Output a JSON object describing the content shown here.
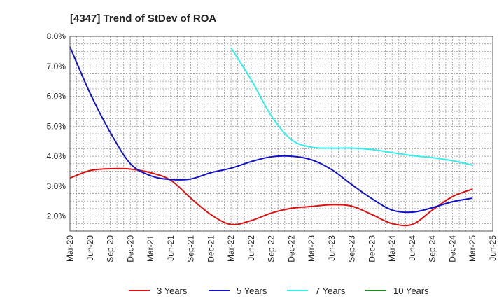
{
  "chart_data": {
    "type": "line",
    "title": "[4347]  Trend of StDev of ROA",
    "xlabel": "",
    "ylabel": "",
    "x_ticks": [
      "Mar-20",
      "Jun-20",
      "Sep-20",
      "Dec-20",
      "Mar-21",
      "Jun-21",
      "Sep-21",
      "Dec-21",
      "Mar-22",
      "Jun-22",
      "Sep-22",
      "Dec-22",
      "Mar-23",
      "Jun-23",
      "Sep-23",
      "Dec-23",
      "Mar-24",
      "Jun-24",
      "Sep-24",
      "Dec-24",
      "Mar-25",
      "Jun-25"
    ],
    "y_ticks": [
      "2.0%",
      "3.0%",
      "4.0%",
      "5.0%",
      "6.0%",
      "7.0%",
      "8.0%"
    ],
    "ylim": [
      1.5,
      8.0
    ],
    "grid": true,
    "legend_position": "bottom",
    "series": [
      {
        "name": "3 Years",
        "color": "#dd1111",
        "x": [
          "Mar-20",
          "Jun-20",
          "Sep-20",
          "Dec-20",
          "Mar-21",
          "Jun-21",
          "Sep-21",
          "Dec-21",
          "Mar-22",
          "Jun-22",
          "Sep-22",
          "Dec-22",
          "Mar-23",
          "Jun-23",
          "Sep-23",
          "Dec-23",
          "Mar-24",
          "Jun-24",
          "Sep-24",
          "Dec-24",
          "Mar-25"
        ],
        "values": [
          3.27,
          3.52,
          3.58,
          3.57,
          3.45,
          3.2,
          2.6,
          2.05,
          1.72,
          1.85,
          2.1,
          2.26,
          2.32,
          2.38,
          2.33,
          2.05,
          1.75,
          1.72,
          2.2,
          2.65,
          2.9
        ]
      },
      {
        "name": "5 Years",
        "color": "#1111cc",
        "x": [
          "Mar-20",
          "Jun-20",
          "Sep-20",
          "Dec-20",
          "Mar-21",
          "Jun-21",
          "Sep-21",
          "Dec-21",
          "Mar-22",
          "Jun-22",
          "Sep-22",
          "Dec-22",
          "Mar-23",
          "Jun-23",
          "Sep-23",
          "Dec-23",
          "Mar-24",
          "Jun-24",
          "Sep-24",
          "Dec-24",
          "Mar-25"
        ],
        "values": [
          7.65,
          6.1,
          4.8,
          3.75,
          3.35,
          3.22,
          3.24,
          3.45,
          3.6,
          3.82,
          3.98,
          4.0,
          3.88,
          3.55,
          3.05,
          2.58,
          2.2,
          2.13,
          2.28,
          2.48,
          2.6
        ]
      },
      {
        "name": "7 Years",
        "color": "#33eeee",
        "x": [
          "Mar-22",
          "Jun-22",
          "Sep-22",
          "Dec-22",
          "Mar-23",
          "Jun-23",
          "Sep-23",
          "Dec-23",
          "Mar-24",
          "Jun-24",
          "Sep-24",
          "Dec-24",
          "Mar-25"
        ],
        "values": [
          7.62,
          6.55,
          5.35,
          4.55,
          4.3,
          4.27,
          4.27,
          4.22,
          4.12,
          4.02,
          3.95,
          3.85,
          3.7
        ]
      },
      {
        "name": "10 Years",
        "color": "#228822",
        "x": [],
        "values": []
      }
    ]
  }
}
